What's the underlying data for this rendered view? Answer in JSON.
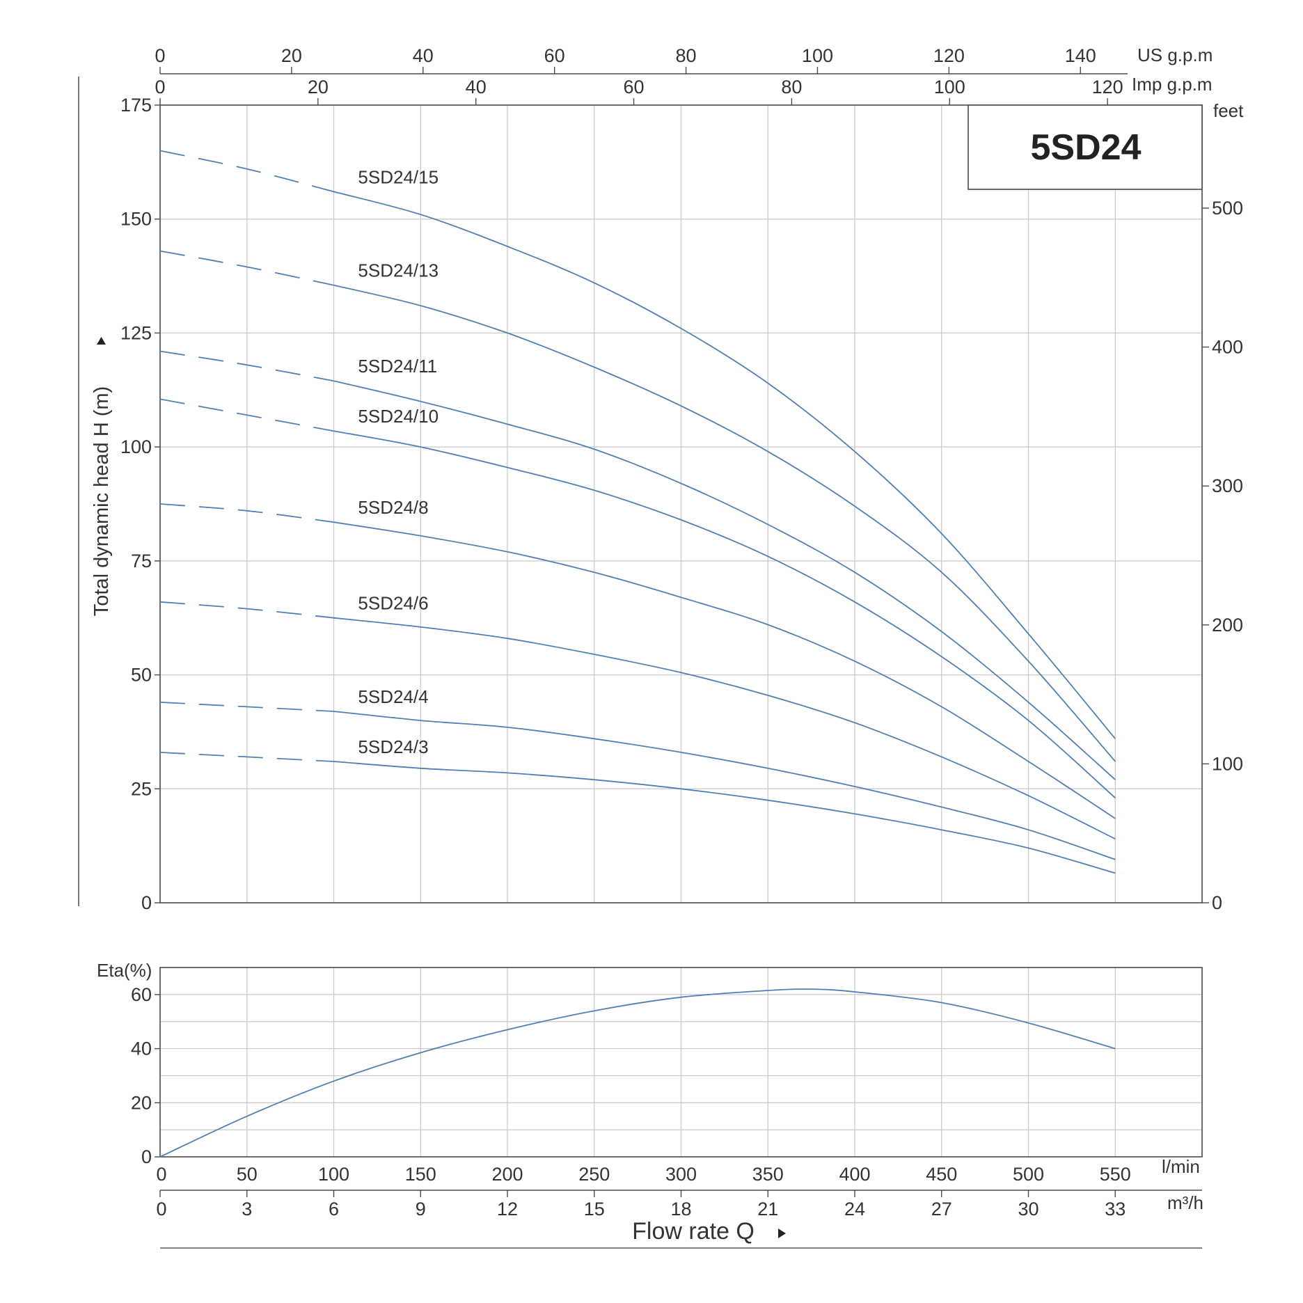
{
  "chart_data": {
    "type": "line",
    "title": "5SD24",
    "curve_color": "#4f7fb3",
    "head_chart": {
      "ylabel": "Total dynamic head H (m)",
      "ylim": [
        0,
        175
      ],
      "yticks": [
        0,
        25,
        50,
        75,
        100,
        125,
        150,
        175
      ],
      "ylabel_right": "feet",
      "yticks_right": [
        0,
        100,
        200,
        300,
        400,
        500
      ],
      "x_unit": "l/min",
      "xlim": [
        0,
        600
      ],
      "dashed_until_x": 100,
      "series": [
        {
          "name": "5SD24/15",
          "x": [
            0,
            50,
            100,
            150,
            200,
            250,
            300,
            350,
            400,
            450,
            500,
            550
          ],
          "y": [
            165,
            161,
            156,
            151,
            144,
            136,
            126,
            114,
            99,
            81,
            59,
            36
          ]
        },
        {
          "name": "5SD24/13",
          "x": [
            0,
            50,
            100,
            150,
            200,
            250,
            300,
            350,
            400,
            450,
            500,
            550
          ],
          "y": [
            143,
            139.5,
            135.5,
            131,
            125,
            117.5,
            109,
            99,
            87,
            72.5,
            53,
            31
          ]
        },
        {
          "name": "5SD24/11",
          "x": [
            0,
            50,
            100,
            150,
            200,
            250,
            300,
            350,
            400,
            450,
            500,
            550
          ],
          "y": [
            121,
            118,
            114.5,
            110,
            105,
            99.5,
            92,
            83,
            72.5,
            59.5,
            44,
            27
          ]
        },
        {
          "name": "5SD24/10",
          "x": [
            0,
            50,
            100,
            150,
            200,
            250,
            300,
            350,
            400,
            450,
            500,
            550
          ],
          "y": [
            110.5,
            107,
            103.5,
            100,
            95.5,
            90.5,
            84,
            76,
            66,
            54,
            40,
            23
          ]
        },
        {
          "name": "5SD24/8",
          "x": [
            0,
            50,
            100,
            150,
            200,
            250,
            300,
            350,
            400,
            450,
            500,
            550
          ],
          "y": [
            87.5,
            86,
            83.5,
            80.5,
            77,
            72.5,
            67,
            61,
            53,
            43,
            31,
            18.5
          ]
        },
        {
          "name": "5SD24/6",
          "x": [
            0,
            50,
            100,
            150,
            200,
            250,
            300,
            350,
            400,
            450,
            500,
            550
          ],
          "y": [
            66,
            64.5,
            62.5,
            60.5,
            58,
            54.5,
            50.5,
            45.5,
            39.5,
            32,
            23.5,
            14
          ]
        },
        {
          "name": "5SD24/4",
          "x": [
            0,
            50,
            100,
            150,
            200,
            250,
            300,
            350,
            400,
            450,
            500,
            550
          ],
          "y": [
            44,
            43,
            42,
            40,
            38.5,
            36,
            33,
            29.5,
            25.5,
            21,
            16,
            9.5
          ]
        },
        {
          "name": "5SD24/3",
          "x": [
            0,
            50,
            100,
            150,
            200,
            250,
            300,
            350,
            400,
            450,
            500,
            550
          ],
          "y": [
            33,
            32,
            31,
            29.5,
            28.5,
            27,
            25,
            22.5,
            19.5,
            16,
            12,
            6.5
          ]
        }
      ]
    },
    "efficiency_chart": {
      "ylabel": "Eta(%)",
      "ylim": [
        0,
        70
      ],
      "yticks": [
        0,
        20,
        40,
        60
      ],
      "x": [
        0,
        50,
        100,
        150,
        200,
        250,
        300,
        350,
        375,
        400,
        450,
        500,
        550
      ],
      "y": [
        0,
        15,
        28,
        38.5,
        47,
        54,
        59,
        61.5,
        62,
        61,
        57,
        49.5,
        40
      ]
    },
    "x_axes": {
      "us_gpm": {
        "label": "US g.p.m",
        "ticks": [
          0,
          20,
          40,
          60,
          80,
          100,
          120,
          140
        ]
      },
      "imp_gpm": {
        "label": "Imp g.p.m",
        "ticks": [
          0,
          20,
          40,
          60,
          80,
          100,
          120
        ]
      },
      "lpm": {
        "label": "l/min",
        "ticks": [
          0,
          50,
          100,
          150,
          200,
          250,
          300,
          350,
          400,
          450,
          500,
          550
        ]
      },
      "m3h": {
        "label": "m³/h",
        "ticks": [
          0,
          3,
          6,
          9,
          12,
          15,
          18,
          21,
          24,
          27,
          30,
          33
        ]
      }
    },
    "xlabel": "Flow rate Q"
  }
}
